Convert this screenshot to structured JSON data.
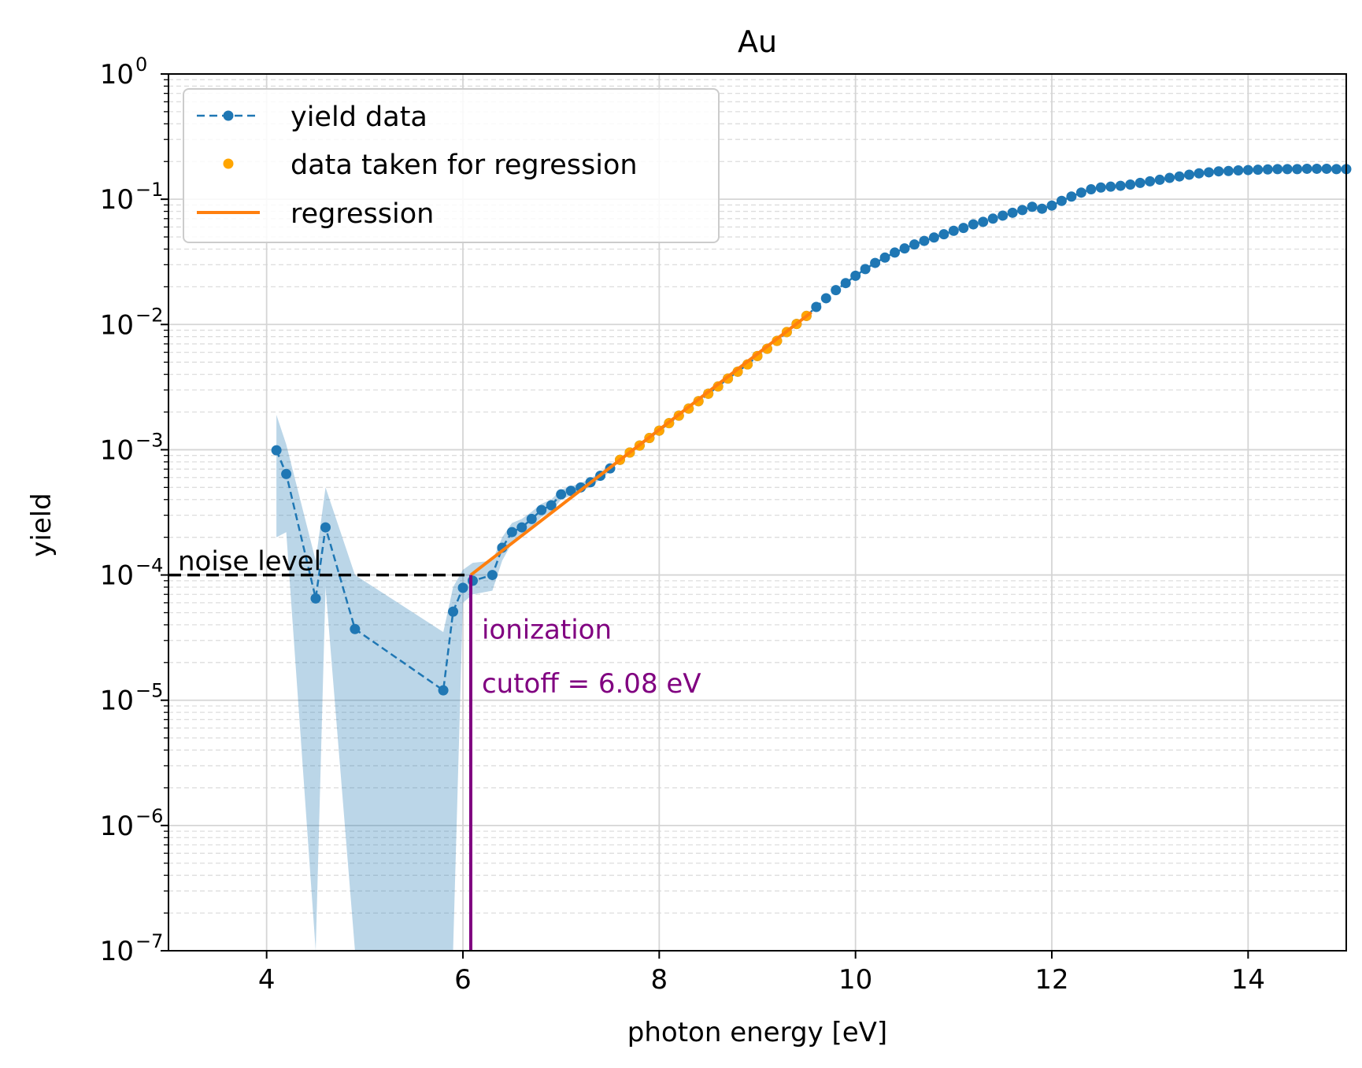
{
  "chart_data": {
    "type": "line",
    "title": "Au",
    "xlabel": "photon energy [eV]",
    "ylabel": "yield",
    "xlim": [
      3.0,
      15.0
    ],
    "ylim": [
      1e-07,
      1.0
    ],
    "yscale": "log",
    "grid": true,
    "x_ticks": [
      {
        "value": 4,
        "label": "4"
      },
      {
        "value": 6,
        "label": "6"
      },
      {
        "value": 8,
        "label": "8"
      },
      {
        "value": 10,
        "label": "10"
      },
      {
        "value": 12,
        "label": "12"
      },
      {
        "value": 14,
        "label": "14"
      }
    ],
    "y_ticks": [
      {
        "value": 1e-07,
        "base": "10",
        "exp": "−7"
      },
      {
        "value": 1e-06,
        "base": "10",
        "exp": "−6"
      },
      {
        "value": 1e-05,
        "base": "10",
        "exp": "−5"
      },
      {
        "value": 0.0001,
        "base": "10",
        "exp": "−4"
      },
      {
        "value": 0.001,
        "base": "10",
        "exp": "−3"
      },
      {
        "value": 0.01,
        "base": "10",
        "exp": "−2"
      },
      {
        "value": 0.1,
        "base": "10",
        "exp": "−1"
      },
      {
        "value": 1,
        "base": "10",
        "exp": "0"
      }
    ],
    "legend": {
      "position": "upper-left",
      "entries": [
        {
          "label": "yield data",
          "style": "dashed-line-with-dots",
          "color": "#1f77b4"
        },
        {
          "label": "data taken for regression",
          "style": "dots",
          "color": "#ffa500"
        },
        {
          "label": "regression",
          "style": "solid-line",
          "color": "#ff7f0e"
        }
      ]
    },
    "series": [
      {
        "name": "yield data",
        "color": "#1f77b4",
        "x": [
          4.1,
          4.2,
          4.5,
          4.6,
          4.9,
          5.8,
          5.9,
          6.0,
          6.1,
          6.3,
          6.4,
          6.5,
          6.6,
          6.7,
          6.8,
          6.9,
          7.0,
          7.1,
          7.2,
          7.3,
          7.4,
          7.5,
          7.6,
          7.7,
          7.8,
          7.9,
          8.0,
          8.1,
          8.2,
          8.3,
          8.4,
          8.5,
          8.6,
          8.7,
          8.8,
          8.9,
          9.0,
          9.1,
          9.2,
          9.3,
          9.4,
          9.5,
          9.6,
          9.7,
          9.8,
          9.9,
          10.0,
          10.1,
          10.2,
          10.3,
          10.4,
          10.5,
          10.6,
          10.7,
          10.8,
          10.9,
          11.0,
          11.1,
          11.2,
          11.3,
          11.4,
          11.5,
          11.6,
          11.7,
          11.8,
          11.9,
          12.0,
          12.1,
          12.2,
          12.3,
          12.4,
          12.5,
          12.6,
          12.7,
          12.8,
          12.9,
          13.0,
          13.1,
          13.2,
          13.3,
          13.4,
          13.5,
          13.6,
          13.7,
          13.8,
          13.9,
          14.0,
          14.1,
          14.2,
          14.3,
          14.4,
          14.5,
          14.6,
          14.7,
          14.8,
          14.9,
          15.0
        ],
        "y": [
          0.00099,
          0.00064,
          6.5e-05,
          0.00024,
          3.7e-05,
          1.2e-05,
          5.1e-05,
          7.9e-05,
          9e-05,
          0.0001,
          0.000165,
          0.00022,
          0.00024,
          0.00028,
          0.00033,
          0.00036,
          0.00044,
          0.00047,
          0.0005,
          0.00055,
          0.00062,
          0.00071,
          0.00083,
          0.00095,
          0.00108,
          0.00124,
          0.00142,
          0.00163,
          0.00187,
          0.00213,
          0.00244,
          0.0028,
          0.0032,
          0.0037,
          0.0042,
          0.0048,
          0.0056,
          0.0064,
          0.0074,
          0.0087,
          0.0101,
          0.0117,
          0.0138,
          0.0162,
          0.0188,
          0.0214,
          0.0245,
          0.0277,
          0.031,
          0.0342,
          0.0375,
          0.0405,
          0.0435,
          0.0465,
          0.0495,
          0.0525,
          0.056,
          0.059,
          0.063,
          0.066,
          0.07,
          0.074,
          0.078,
          0.082,
          0.087,
          0.084,
          0.089,
          0.097,
          0.105,
          0.113,
          0.12,
          0.124,
          0.126,
          0.128,
          0.131,
          0.135,
          0.139,
          0.143,
          0.148,
          0.152,
          0.157,
          0.161,
          0.164,
          0.167,
          0.168,
          0.17,
          0.171,
          0.172,
          0.173,
          0.174,
          0.174,
          0.174,
          0.175,
          0.175,
          0.175,
          0.174,
          0.174
        ],
        "band_upper": [
          0.0019,
          0.0011,
          0.00013,
          0.0005,
          0.0001,
          3.5e-05,
          8e-05,
          0.00011,
          0.000125,
          0.00013,
          0.0002,
          0.00026,
          0.00028,
          0.00032,
          0.00037,
          0.0004,
          0.00048,
          0.00051,
          0.00054,
          0.00059,
          0.00066,
          0.00075
        ],
        "band_lower": [
          0.0002,
          0.00022,
          1e-08,
          8e-05,
          1e-08,
          1e-08,
          1e-08,
          6e-05,
          7e-05,
          7.5e-05,
          0.00013,
          0.00018,
          0.0002,
          0.00024,
          0.00029,
          0.00032,
          0.0004,
          0.00043,
          0.00046,
          0.00051,
          0.00058,
          0.00067
        ]
      },
      {
        "name": "data taken for regression",
        "color": "#ffa500",
        "x": [
          7.6,
          7.7,
          7.8,
          7.9,
          8.0,
          8.1,
          8.2,
          8.3,
          8.4,
          8.5,
          8.6,
          8.7,
          8.8,
          8.9,
          9.0,
          9.1,
          9.2,
          9.3,
          9.4,
          9.5
        ],
        "y": [
          0.00083,
          0.00095,
          0.00108,
          0.00124,
          0.00142,
          0.00163,
          0.00187,
          0.00213,
          0.00244,
          0.0028,
          0.0032,
          0.0037,
          0.0042,
          0.0048,
          0.0056,
          0.0064,
          0.0074,
          0.0087,
          0.0101,
          0.0117
        ]
      },
      {
        "name": "regression",
        "color": "#ff7f0e",
        "x": [
          6.08,
          9.55
        ],
        "y": [
          0.0001,
          0.0125
        ]
      }
    ],
    "annotations": {
      "noise_level": {
        "label": "noise level",
        "value": 0.0001,
        "color": "#000000"
      },
      "cutoff": {
        "line1": "ionization",
        "line2": "cutoff = 6.08 eV",
        "x": 6.08,
        "color": "#800080"
      }
    }
  }
}
